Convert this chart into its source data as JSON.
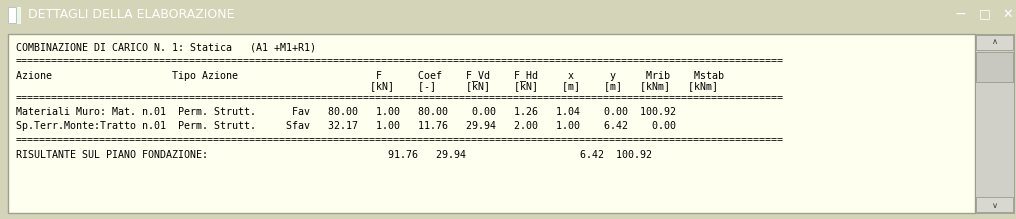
{
  "title_bar_text": "DETTAGLI DELLA ELABORAZIONE",
  "title_bar_bg": "#2e8b6b",
  "title_bar_fg": "#ffffff",
  "outer_bg": "#d4d4b8",
  "content_bg": "#fffff0",
  "content_border_color": "#a0a090",
  "scrollbar_bg": "#d0d0c8",
  "scrollbar_thumb": "#c0c0b8",
  "text_color": "#000000",
  "font_size": 7.2,
  "lines": [
    "COMBINAZIONE DI CARICO N. 1: Statica   (A1 +M1+R1)",
    "================================================================================================================================",
    "Azione                    Tipo Azione                       F      Coef    F_Vd    F_Hd     x      y     Mrib    Mstab",
    "                                                           [kN]    [-]     [kN]    [kN]    [m]    [m]   [kNm]   [kNm]",
    "================================================================================================================================",
    "Materiali Muro: Mat. n.01  Perm. Strutt.      Fav   80.00   1.00   80.00    0.00   1.26   1.04    0.00  100.92",
    "Sp.Terr.Monte:Tratto n.01  Perm. Strutt.     Sfav   32.17   1.00   11.76   29.94   2.00   1.00    6.42    0.00",
    "================================================================================================================================",
    "RISULTANTE SUL PIANO FONDAZIONE:                              91.76   29.94                   6.42  100.92"
  ]
}
